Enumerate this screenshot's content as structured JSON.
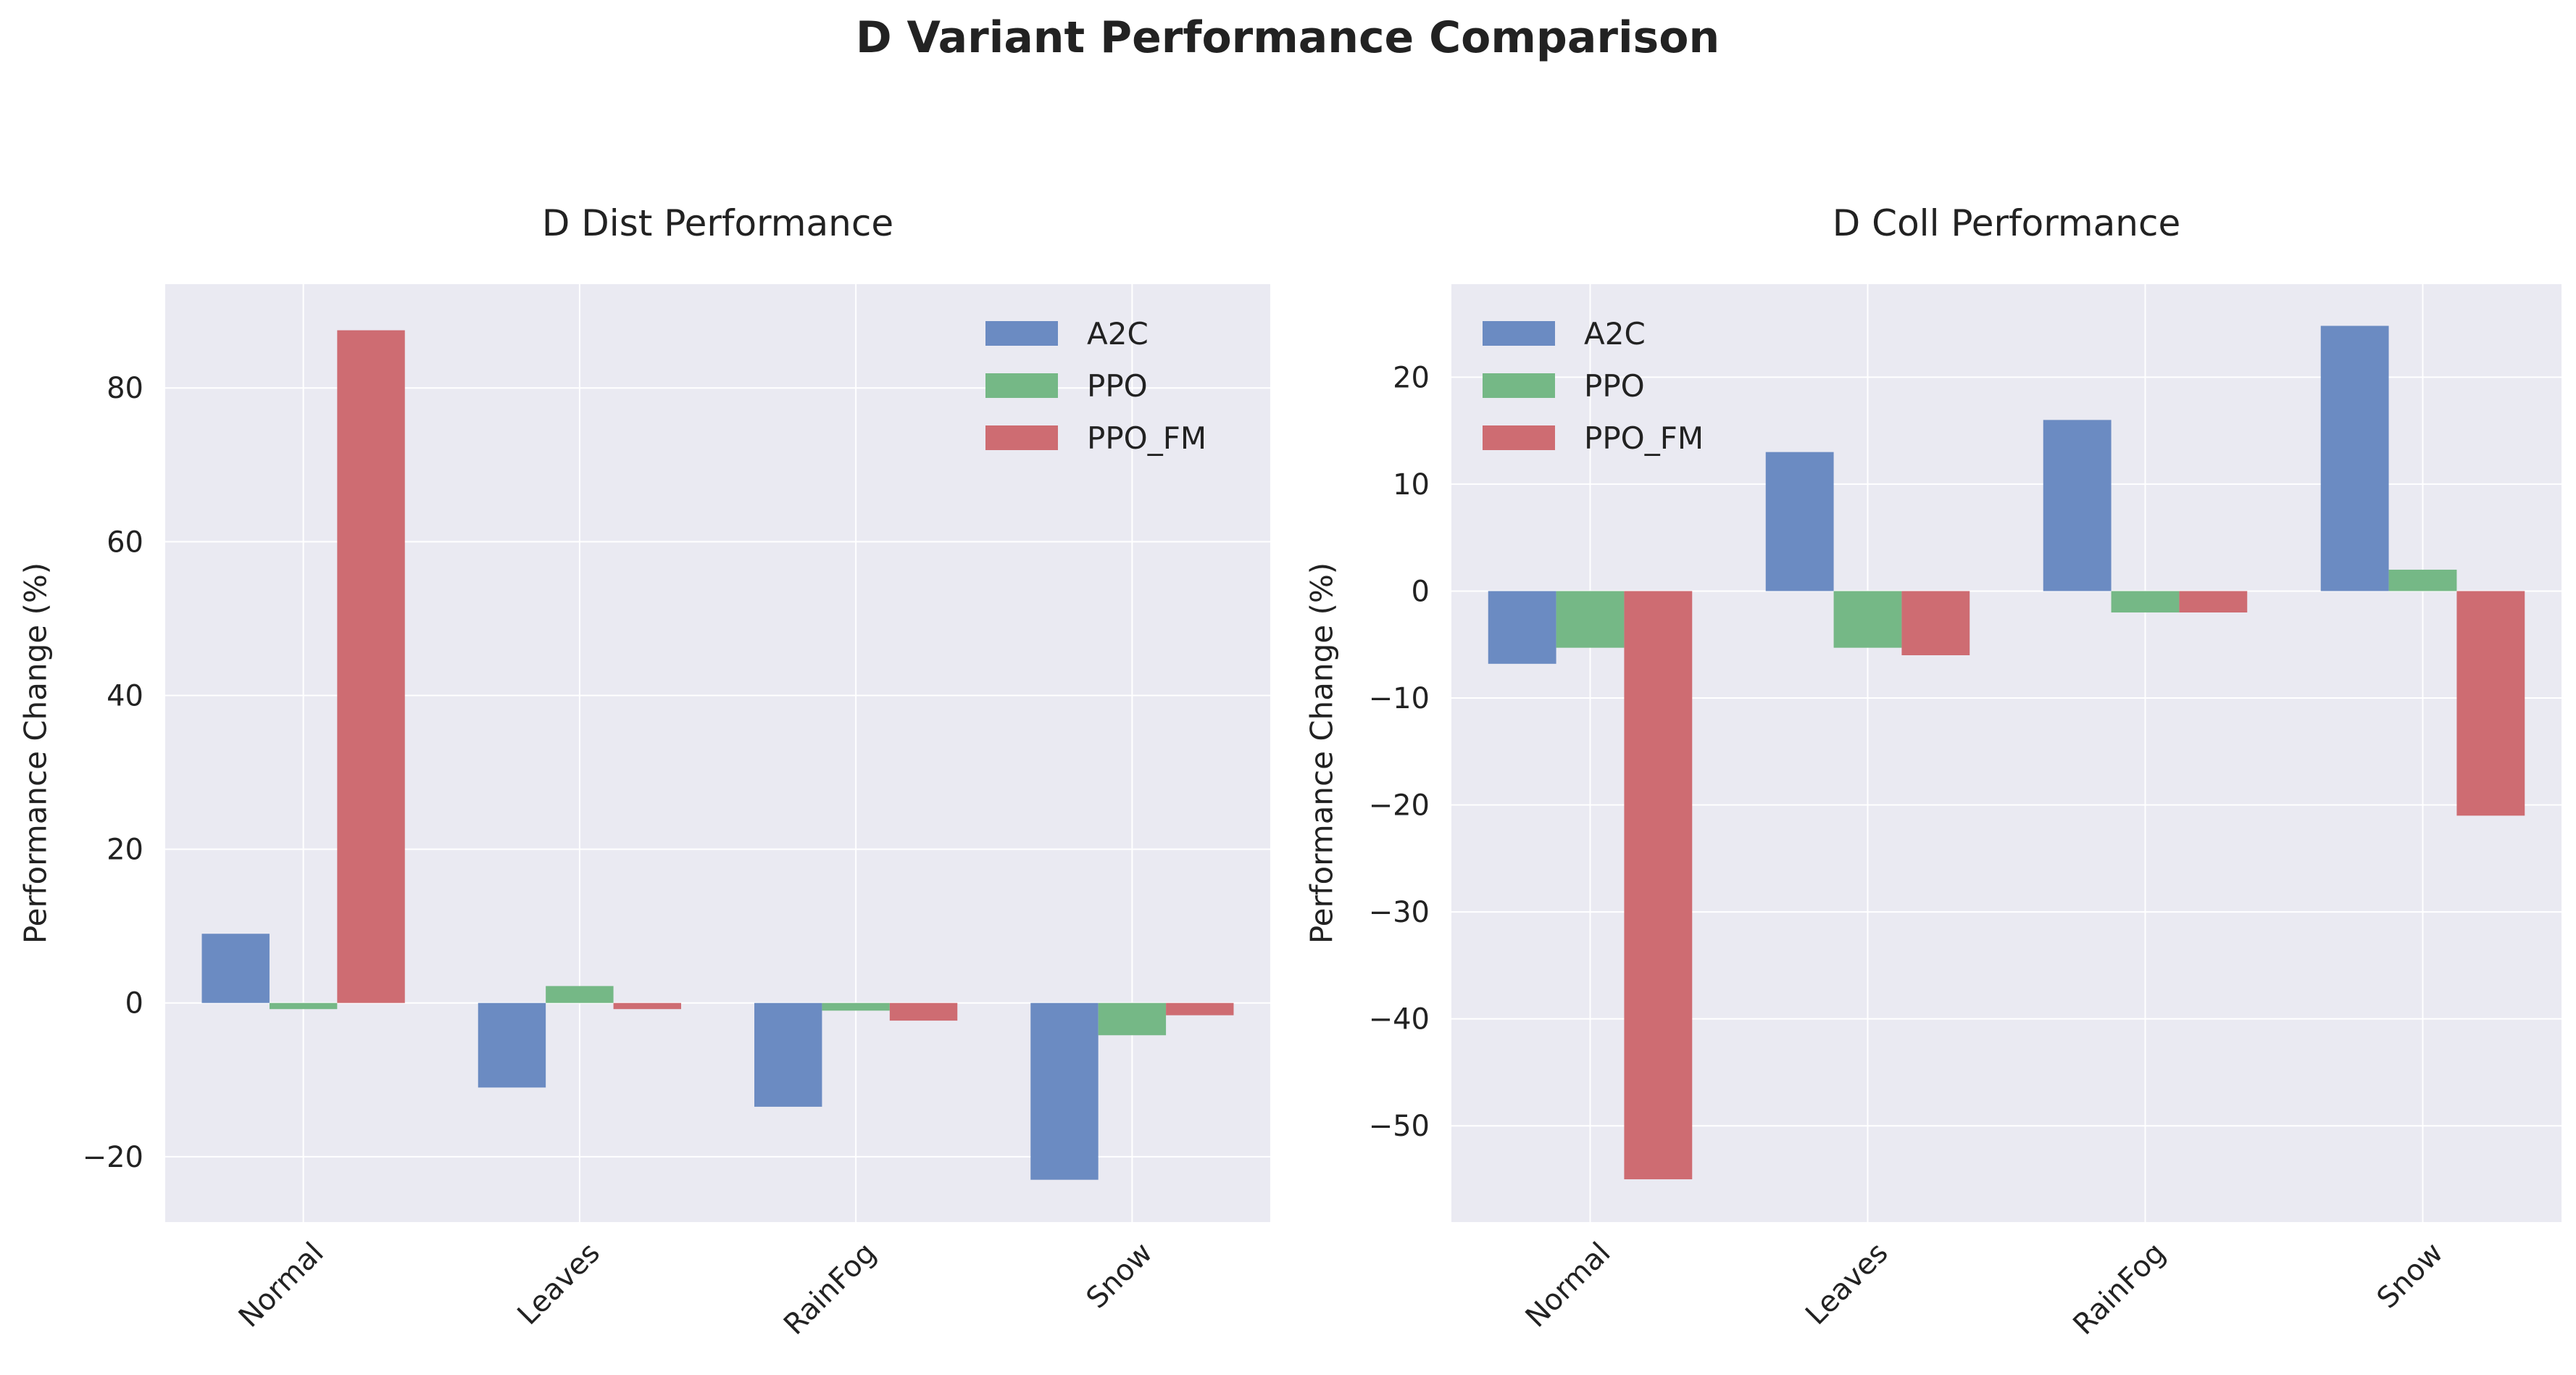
{
  "figure_title": "D Variant Performance Comparison",
  "colors": {
    "A2C": "#6b8bc2",
    "PPO": "#75b886",
    "PPO_FM": "#ce6c72",
    "axes_bg": "#eaeaf2",
    "grid": "#ffffff",
    "text": "#222222"
  },
  "chart_data": [
    {
      "type": "bar",
      "title": "D Dist Performance",
      "xlabel": "",
      "ylabel": "Performance Change (%)",
      "categories": [
        "Normal",
        "Leaves",
        "RainFog",
        "Snow"
      ],
      "series": [
        {
          "name": "A2C",
          "values": [
            9.0,
            -11.0,
            -13.5,
            -23.0
          ]
        },
        {
          "name": "PPO",
          "values": [
            -0.8,
            2.2,
            -1.0,
            -4.2
          ]
        },
        {
          "name": "PPO_FM",
          "values": [
            87.5,
            -0.8,
            -2.3,
            -1.6
          ]
        }
      ],
      "ylim": [
        -28.5,
        93.5
      ],
      "yticks": [
        -20,
        0,
        20,
        40,
        60,
        80
      ],
      "ytick_labels": [
        "−20",
        "0",
        "20",
        "40",
        "60",
        "80"
      ],
      "grid": true,
      "legend": "upper right"
    },
    {
      "type": "bar",
      "title": "D Coll Performance",
      "xlabel": "",
      "ylabel": "Performance Change (%)",
      "categories": [
        "Normal",
        "Leaves",
        "RainFog",
        "Snow"
      ],
      "series": [
        {
          "name": "A2C",
          "values": [
            -6.8,
            13.0,
            16.0,
            24.8
          ]
        },
        {
          "name": "PPO",
          "values": [
            -5.3,
            -5.3,
            -2.0,
            2.0
          ]
        },
        {
          "name": "PPO_FM",
          "values": [
            -55.0,
            -6.0,
            -2.0,
            -21.0
          ]
        }
      ],
      "ylim": [
        -59.0,
        28.7
      ],
      "yticks": [
        -50,
        -40,
        -30,
        -20,
        -10,
        0,
        10,
        20
      ],
      "ytick_labels": [
        "−50",
        "−40",
        "−30",
        "−20",
        "−10",
        "0",
        "10",
        "20"
      ],
      "grid": true,
      "legend": "upper left"
    }
  ]
}
